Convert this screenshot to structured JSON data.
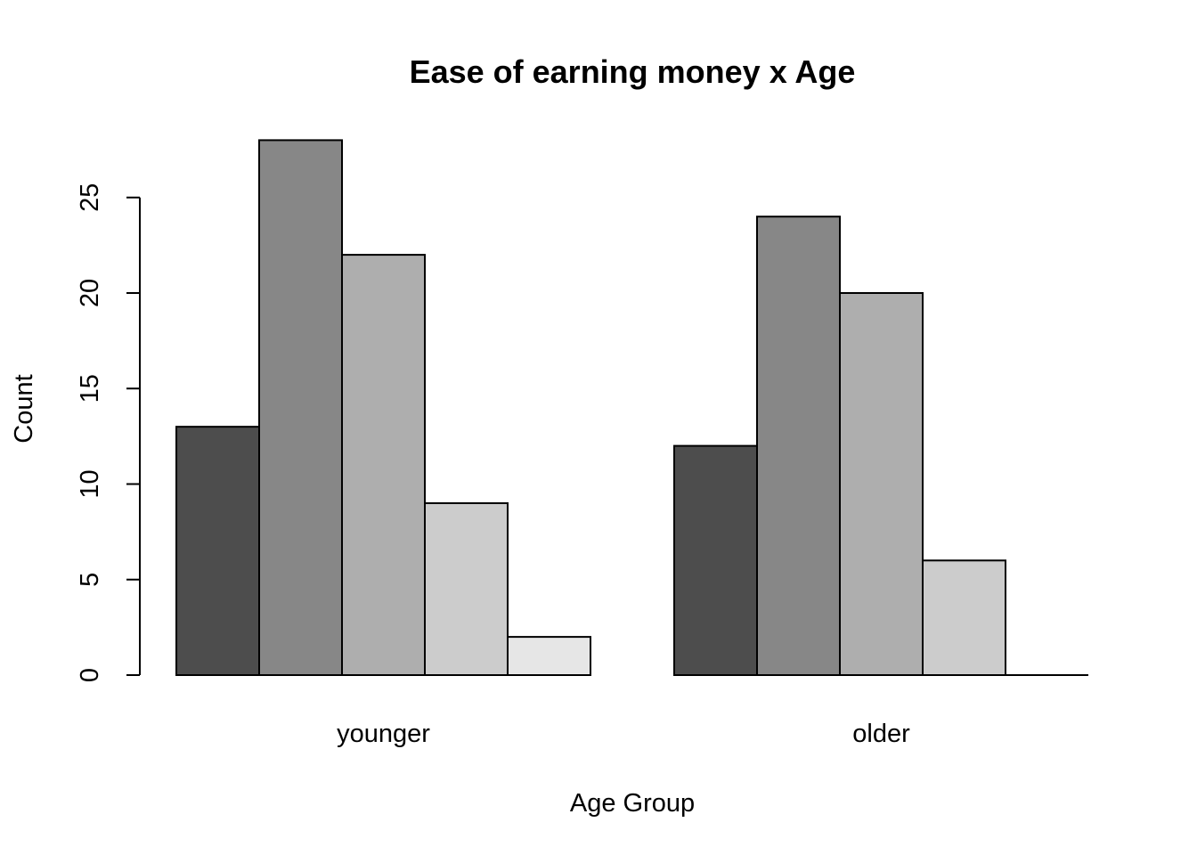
{
  "chart_data": {
    "type": "bar",
    "title": "Ease of earning money x Age",
    "xlabel": "Age Group",
    "ylabel": "Count",
    "categories": [
      "younger",
      "older"
    ],
    "series": [
      {
        "values": [
          13,
          12
        ],
        "color": "#4d4d4d"
      },
      {
        "values": [
          28,
          24
        ],
        "color": "#878787"
      },
      {
        "values": [
          22,
          20
        ],
        "color": "#aeaeae"
      },
      {
        "values": [
          9,
          6
        ],
        "color": "#cccccc"
      },
      {
        "values": [
          2,
          0
        ],
        "color": "#e6e6e6"
      }
    ],
    "yticks": [
      0,
      5,
      10,
      15,
      20,
      25
    ],
    "ylim": [
      0,
      28
    ],
    "grid": false,
    "legend": "none",
    "layout": "grouped"
  }
}
